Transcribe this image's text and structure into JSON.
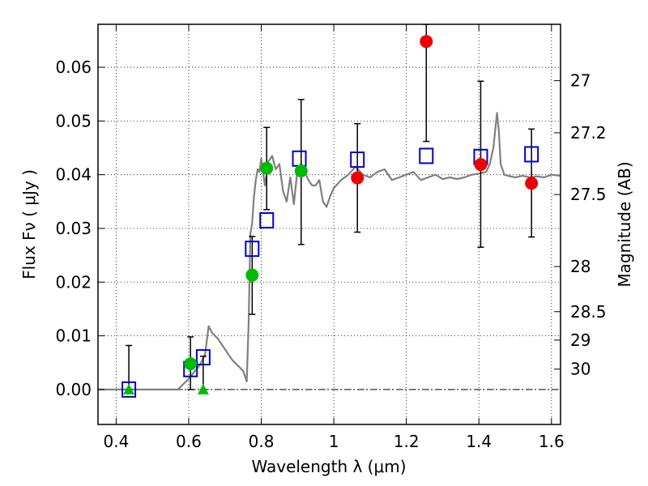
{
  "chart_data": {
    "type": "scatter",
    "xlabel": "Wavelength  λ (μm)",
    "ylabel": "Flux  Fν  ( μJy )",
    "y2label": "Magnitude (AB)",
    "xlim": [
      0.35,
      1.625
    ],
    "ylim": [
      -0.0065,
      0.068
    ],
    "grid": true,
    "x_ticks": [
      0.4,
      0.6,
      0.8,
      1.0,
      1.2,
      1.4,
      1.6
    ],
    "x_tick_labels": [
      "0.4",
      "0.6",
      "0.8",
      "1",
      "1.2",
      "1.4",
      "1.6"
    ],
    "y_ticks": [
      0.0,
      0.01,
      0.02,
      0.03,
      0.04,
      0.05,
      0.06
    ],
    "y_tick_labels": [
      "0.00",
      "0.01",
      "0.02",
      "0.03",
      "0.04",
      "0.05",
      "0.06"
    ],
    "y2_ticks": [
      {
        "label": "27",
        "flux": 0.0575
      },
      {
        "label": "27.2",
        "flux": 0.0478
      },
      {
        "label": "27.5",
        "flux": 0.0363
      },
      {
        "label": "28",
        "flux": 0.0229
      },
      {
        "label": "28.5",
        "flux": 0.0145
      },
      {
        "label": "29",
        "flux": 0.0092
      },
      {
        "label": "30",
        "flux": 0.0038
      }
    ],
    "spectrum": {
      "color": "#808080",
      "x": [
        0.35,
        0.57,
        0.6,
        0.63,
        0.645,
        0.655,
        0.665,
        0.68,
        0.7,
        0.72,
        0.735,
        0.75,
        0.755,
        0.76,
        0.765,
        0.77,
        0.775,
        0.78,
        0.785,
        0.79,
        0.795,
        0.8,
        0.81,
        0.82,
        0.83,
        0.84,
        0.85,
        0.86,
        0.87,
        0.88,
        0.89,
        0.9,
        0.91,
        0.92,
        0.93,
        0.94,
        0.95,
        0.96,
        0.97,
        0.98,
        0.99,
        1.0,
        1.02,
        1.04,
        1.06,
        1.08,
        1.1,
        1.12,
        1.14,
        1.16,
        1.18,
        1.2,
        1.22,
        1.24,
        1.26,
        1.28,
        1.3,
        1.32,
        1.34,
        1.36,
        1.38,
        1.4,
        1.42,
        1.43,
        1.44,
        1.45,
        1.455,
        1.46,
        1.47,
        1.48,
        1.5,
        1.52,
        1.54,
        1.56,
        1.58,
        1.6,
        1.625
      ],
      "y": [
        0.0,
        0.0,
        0.002,
        0.0045,
        0.0065,
        0.0118,
        0.0105,
        0.0095,
        0.0075,
        0.0055,
        0.0045,
        0.0035,
        0.0025,
        0.0015,
        0.012,
        0.029,
        0.031,
        0.036,
        0.039,
        0.041,
        0.0405,
        0.043,
        0.038,
        0.0425,
        0.0435,
        0.041,
        0.042,
        0.037,
        0.035,
        0.0395,
        0.0345,
        0.041,
        0.042,
        0.0405,
        0.039,
        0.038,
        0.038,
        0.039,
        0.035,
        0.034,
        0.036,
        0.0375,
        0.039,
        0.04,
        0.0415,
        0.04,
        0.0395,
        0.0405,
        0.041,
        0.039,
        0.0395,
        0.04,
        0.0405,
        0.039,
        0.0395,
        0.04,
        0.0392,
        0.0395,
        0.0392,
        0.0395,
        0.04,
        0.0402,
        0.0405,
        0.042,
        0.045,
        0.0515,
        0.048,
        0.042,
        0.04,
        0.0398,
        0.0395,
        0.0398,
        0.0395,
        0.0397,
        0.0395,
        0.04,
        0.0398
      ]
    },
    "model_points": [
      {
        "x": 0.435,
        "y": 0.0
      },
      {
        "x": 0.605,
        "y": 0.0038
      },
      {
        "x": 0.64,
        "y": 0.006
      },
      {
        "x": 0.775,
        "y": 0.0262
      },
      {
        "x": 0.815,
        "y": 0.0315
      },
      {
        "x": 0.905,
        "y": 0.043
      },
      {
        "x": 1.065,
        "y": 0.0428
      },
      {
        "x": 1.255,
        "y": 0.0435
      },
      {
        "x": 1.405,
        "y": 0.0433
      },
      {
        "x": 1.545,
        "y": 0.0438
      }
    ],
    "model_color": "#0000cc",
    "green_detections": [
      {
        "x": 0.605,
        "y": 0.0048,
        "err_low": 0.0,
        "err_high": 0.0098
      },
      {
        "x": 0.775,
        "y": 0.0213,
        "err_low": 0.014,
        "err_high": 0.0285
      },
      {
        "x": 0.815,
        "y": 0.0412,
        "err_low": 0.0335,
        "err_high": 0.0488
      },
      {
        "x": 0.91,
        "y": 0.0407,
        "err_low": 0.027,
        "err_high": 0.054
      }
    ],
    "green_limits": [
      {
        "x": 0.435,
        "y": 0.0,
        "err_high": 0.0082
      },
      {
        "x": 0.64,
        "y": 0.0,
        "err_high": 0.0062
      }
    ],
    "green_color": "#00bb00",
    "red_detections": [
      {
        "x": 1.065,
        "y": 0.0394,
        "err_low": 0.0293,
        "err_high": 0.0495
      },
      {
        "x": 1.255,
        "y": 0.0648,
        "err_low": 0.0462,
        "err_high": 0.068
      },
      {
        "x": 1.405,
        "y": 0.0419,
        "err_low": 0.0265,
        "err_high": 0.0574
      },
      {
        "x": 1.545,
        "y": 0.0384,
        "err_low": 0.0284,
        "err_high": 0.0485
      }
    ],
    "red_color": "#ee0000"
  }
}
